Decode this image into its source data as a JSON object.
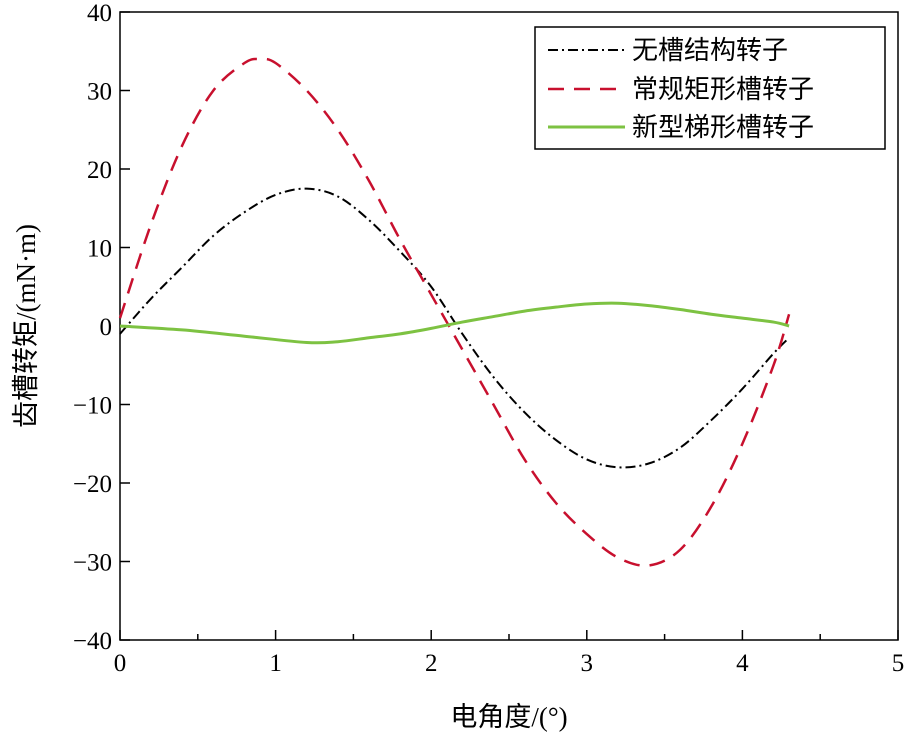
{
  "chart_data": {
    "type": "line",
    "xlabel": "电角度/(°)",
    "ylabel": "齿槽转矩/(mN·m)",
    "xlim": [
      0,
      5
    ],
    "ylim": [
      -40,
      40
    ],
    "xticks": [
      "0",
      "1",
      "2",
      "3",
      "4",
      "5"
    ],
    "yticks": [
      "40",
      "30",
      "20",
      "10",
      "0",
      "−10",
      "−20",
      "−30",
      "−40"
    ],
    "grid": false,
    "legend_position": "top-right",
    "series": [
      {
        "name": "无槽结构转子",
        "color": "#000000",
        "style": "dash-dot",
        "x": [
          0,
          0.2,
          0.4,
          0.6,
          0.8,
          1.0,
          1.2,
          1.4,
          1.6,
          1.8,
          2.0,
          2.2,
          2.4,
          2.6,
          2.8,
          3.0,
          3.2,
          3.4,
          3.6,
          3.8,
          4.0,
          4.2,
          4.3
        ],
        "y": [
          -1,
          3.5,
          7.5,
          11.5,
          14.5,
          16.7,
          17.5,
          16.5,
          13.5,
          9.5,
          5,
          -1,
          -6.5,
          -11,
          -14.5,
          -17,
          -18,
          -17.5,
          -15.5,
          -12,
          -8,
          -3.5,
          -1.5
        ]
      },
      {
        "name": "常规矩形槽转子",
        "color": "#c8102e",
        "style": "dashed",
        "x": [
          0,
          0.2,
          0.4,
          0.6,
          0.8,
          0.9,
          1.0,
          1.2,
          1.4,
          1.6,
          1.8,
          2.0,
          2.2,
          2.4,
          2.6,
          2.8,
          3.0,
          3.2,
          3.4,
          3.6,
          3.8,
          4.0,
          4.2,
          4.3
        ],
        "y": [
          1,
          13,
          23,
          30,
          33.5,
          34,
          33.5,
          30,
          25,
          18.5,
          11,
          4,
          -3,
          -10,
          -17,
          -22.5,
          -26.5,
          -29.5,
          -30.5,
          -28.5,
          -23,
          -15,
          -5,
          1.5
        ]
      },
      {
        "name": "新型梯形槽转子",
        "color": "#7dc242",
        "style": "solid",
        "x": [
          0,
          0.4,
          0.8,
          1.2,
          1.4,
          1.6,
          1.8,
          2.0,
          2.2,
          2.4,
          2.6,
          2.8,
          3.0,
          3.2,
          3.4,
          3.6,
          3.8,
          4.0,
          4.2,
          4.3
        ],
        "y": [
          0,
          -0.5,
          -1.3,
          -2.1,
          -2,
          -1.5,
          -1,
          -0.3,
          0.5,
          1.2,
          1.9,
          2.4,
          2.8,
          2.9,
          2.6,
          2.1,
          1.5,
          1,
          0.5,
          0
        ]
      }
    ]
  }
}
